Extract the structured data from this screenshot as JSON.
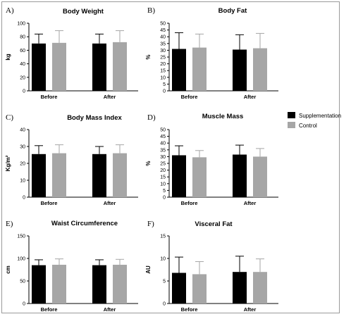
{
  "colors": {
    "supplementation": "#000000",
    "control": "#a6a6a6",
    "axis": "#000000"
  },
  "legend": {
    "items": [
      {
        "label": "Supplementation",
        "color": "#000000"
      },
      {
        "label": "Control",
        "color": "#a6a6a6"
      }
    ],
    "placement": "right"
  },
  "chart_data": [
    {
      "type": "bar",
      "letter": "A)",
      "title": "Body Weight",
      "ylabel": "kg",
      "ylim": [
        0,
        100
      ],
      "ticks": [
        0,
        20,
        40,
        60,
        80,
        100
      ],
      "categories": [
        "Before",
        "After"
      ],
      "series": [
        {
          "name": "Supplementation",
          "values": [
            70,
            70
          ],
          "errors": [
            14,
            14
          ]
        },
        {
          "name": "Control",
          "values": [
            71,
            72
          ],
          "errors": [
            18,
            17
          ]
        }
      ]
    },
    {
      "type": "bar",
      "letter": "B)",
      "title": "Body Fat",
      "ylabel": "%",
      "ylim": [
        0,
        50
      ],
      "ticks": [
        0,
        5,
        10,
        15,
        20,
        25,
        30,
        35,
        40,
        45,
        50
      ],
      "categories": [
        "Before",
        "After"
      ],
      "series": [
        {
          "name": "Supplementation",
          "values": [
            31,
            30.5
          ],
          "errors": [
            12,
            11
          ]
        },
        {
          "name": "Control",
          "values": [
            32,
            31.5
          ],
          "errors": [
            10,
            11
          ]
        }
      ]
    },
    {
      "type": "bar",
      "letter": "C)",
      "title": "Body Mass Index",
      "ylabel": "Kg/m²",
      "ylim": [
        0,
        40
      ],
      "ticks": [
        0,
        10,
        20,
        30,
        40
      ],
      "categories": [
        "Before",
        "After"
      ],
      "series": [
        {
          "name": "Supplementation",
          "values": [
            25.5,
            25.5
          ],
          "errors": [
            5,
            4.5
          ]
        },
        {
          "name": "Control",
          "values": [
            26,
            26
          ],
          "errors": [
            5,
            5
          ]
        }
      ]
    },
    {
      "type": "bar",
      "letter": "D)",
      "title": "Muscle Mass",
      "ylabel": "%",
      "ylim": [
        0,
        50
      ],
      "ticks": [
        0,
        5,
        10,
        15,
        20,
        25,
        30,
        35,
        40,
        45,
        50
      ],
      "categories": [
        "Before",
        "After"
      ],
      "series": [
        {
          "name": "Supplementation",
          "values": [
            31,
            31.5
          ],
          "errors": [
            7,
            7
          ]
        },
        {
          "name": "Control",
          "values": [
            29.5,
            30
          ],
          "errors": [
            5,
            6
          ]
        }
      ]
    },
    {
      "type": "bar",
      "letter": "E)",
      "title": "Waist Circumference",
      "ylabel": "cm",
      "ylim": [
        0,
        150
      ],
      "ticks": [
        0,
        50,
        100,
        150
      ],
      "categories": [
        "Before",
        "After"
      ],
      "series": [
        {
          "name": "Supplementation",
          "values": [
            85,
            85
          ],
          "errors": [
            12,
            12
          ]
        },
        {
          "name": "Control",
          "values": [
            86,
            86
          ],
          "errors": [
            13,
            12
          ]
        }
      ]
    },
    {
      "type": "bar",
      "letter": "F)",
      "title": "Visceral Fat",
      "ylabel": "AU",
      "ylim": [
        0,
        15
      ],
      "ticks": [
        0,
        5,
        10,
        15
      ],
      "categories": [
        "Before",
        "After"
      ],
      "series": [
        {
          "name": "Supplementation",
          "values": [
            6.8,
            7
          ],
          "errors": [
            3.5,
            3.5
          ]
        },
        {
          "name": "Control",
          "values": [
            6.5,
            7
          ],
          "errors": [
            2.8,
            2.9
          ]
        }
      ]
    }
  ]
}
